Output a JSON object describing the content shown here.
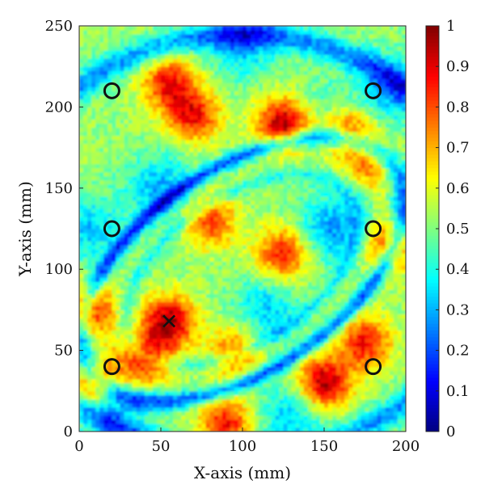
{
  "chart_data": {
    "type": "heatmap",
    "xlabel": "X-axis (mm)",
    "ylabel": "Y-axis (mm)",
    "xlim": [
      0,
      200
    ],
    "ylim": [
      0,
      250
    ],
    "xticks": [
      0,
      50,
      100,
      150,
      200
    ],
    "yticks": [
      0,
      50,
      100,
      150,
      200,
      250
    ],
    "colorbar": {
      "min": 0,
      "max": 1,
      "ticks": [
        0,
        0.1,
        0.2,
        0.3,
        0.4,
        0.5,
        0.6,
        0.7,
        0.8,
        0.9,
        1
      ],
      "tick_labels": [
        "0",
        "0.1",
        "0.2",
        "0.3",
        "0.4",
        "0.5",
        "0.6",
        "0.7",
        "0.8",
        "0.9",
        "1"
      ],
      "colormap": "jet"
    },
    "circle_markers": [
      {
        "x": 20,
        "y": 210
      },
      {
        "x": 180,
        "y": 210
      },
      {
        "x": 20,
        "y": 125
      },
      {
        "x": 180,
        "y": 125
      },
      {
        "x": 20,
        "y": 40
      },
      {
        "x": 180,
        "y": 40
      }
    ],
    "x_marker": {
      "x": 55,
      "y": 68
    },
    "hotspots": [
      {
        "x": 125,
        "y": 190,
        "v": 0.95
      },
      {
        "x": 70,
        "y": 195,
        "v": 0.85
      },
      {
        "x": 55,
        "y": 215,
        "v": 0.85
      },
      {
        "x": 165,
        "y": 185,
        "v": 0.8
      },
      {
        "x": 180,
        "y": 165,
        "v": 0.75
      },
      {
        "x": 80,
        "y": 130,
        "v": 0.8
      },
      {
        "x": 125,
        "y": 110,
        "v": 0.85
      },
      {
        "x": 190,
        "y": 115,
        "v": 0.8
      },
      {
        "x": 55,
        "y": 68,
        "v": 0.95
      },
      {
        "x": 5,
        "y": 75,
        "v": 0.9
      },
      {
        "x": 10,
        "y": 30,
        "v": 0.9
      },
      {
        "x": 40,
        "y": 45,
        "v": 0.85
      },
      {
        "x": 150,
        "y": 30,
        "v": 0.95
      },
      {
        "x": 175,
        "y": 55,
        "v": 0.85
      },
      {
        "x": 90,
        "y": 5,
        "v": 0.85
      },
      {
        "x": 95,
        "y": 50,
        "v": 0.75
      }
    ],
    "cold_bands": [
      {
        "x": 100,
        "y": 240,
        "v": 0.1
      },
      {
        "x": 190,
        "y": 210,
        "v": 0.1
      },
      {
        "x": 50,
        "y": 150,
        "v": 0.1
      },
      {
        "x": 155,
        "y": 125,
        "v": 0.05
      },
      {
        "x": 5,
        "y": 125,
        "v": 0.15
      },
      {
        "x": 115,
        "y": 75,
        "v": 0.15
      },
      {
        "x": 130,
        "y": 10,
        "v": 0.15
      },
      {
        "x": 20,
        "y": 10,
        "v": 0.2
      },
      {
        "x": 150,
        "y": 200,
        "v": 0.35
      }
    ]
  }
}
